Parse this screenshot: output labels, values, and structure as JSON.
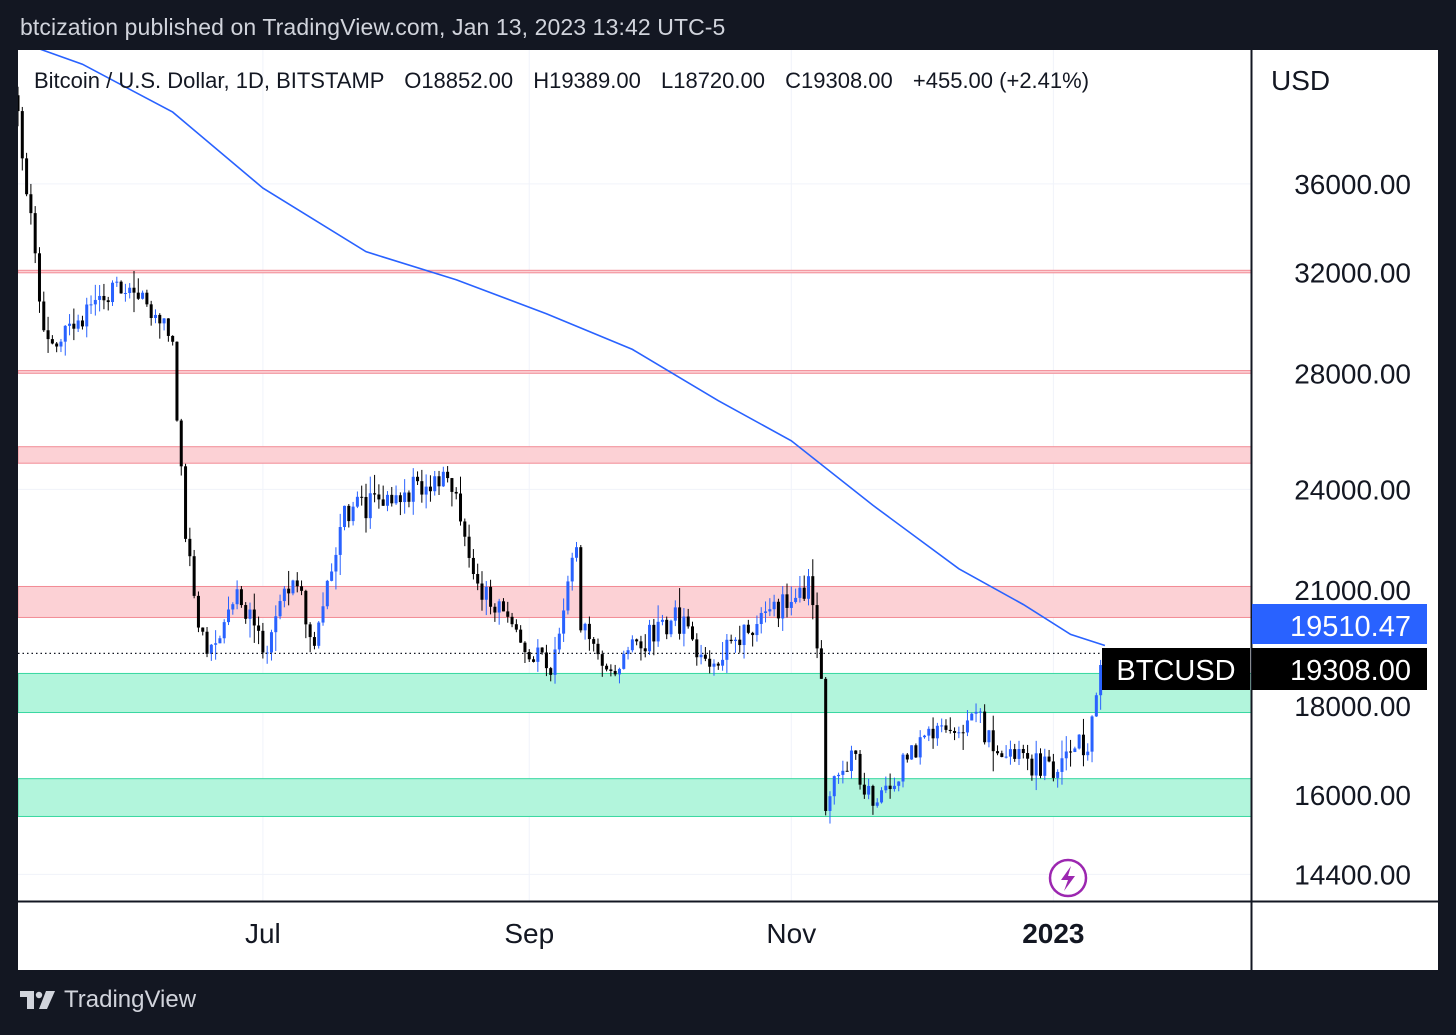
{
  "header": {
    "publisher_line": "btcization published on TradingView.com, Jan 13, 2023 13:42 UTC-5"
  },
  "legend": {
    "title": "Bitcoin / U.S. Dollar, 1D, BITSTAMP",
    "open": "O18852.00",
    "high": "H19389.00",
    "low": "L18720.00",
    "close": "C19308.00",
    "change": "+455.00 (+2.41%)"
  },
  "axis": {
    "currency": "USD",
    "price_ticks": [
      {
        "label": "36000.00",
        "value": 36000
      },
      {
        "label": "32000.00",
        "value": 32000
      },
      {
        "label": "28000.00",
        "value": 28000
      },
      {
        "label": "24000.00",
        "value": 24000
      },
      {
        "label": "21000.00",
        "value": 21000
      },
      {
        "label": "18000.00",
        "value": 18000
      },
      {
        "label": "16000.00",
        "value": 16000
      },
      {
        "label": "14400.00",
        "value": 14400
      }
    ],
    "time_ticks": [
      {
        "label": "Jul",
        "date": "2022-07-01",
        "bold": false
      },
      {
        "label": "Sep",
        "date": "2022-09-01",
        "bold": false
      },
      {
        "label": "Nov",
        "date": "2022-11-01",
        "bold": false
      },
      {
        "label": "2023",
        "date": "2023-01-01",
        "bold": true
      }
    ]
  },
  "badges": {
    "ma_value": "19510.47",
    "symbol": "BTCUSD",
    "last_price": "19308.00"
  },
  "footer": {
    "brand": "TradingView"
  },
  "colors": {
    "background": "#131722",
    "bull": "#2962ff",
    "bear": "#000000",
    "ma_line": "#2962ff",
    "resistance_fill": "#fcd1d5",
    "resistance_border": "#f28b95",
    "support_fill": "#b2f5dc",
    "support_border": "#37d8a0",
    "ma_badge": "#2962ff",
    "price_badge": "#000000",
    "lightning": "#9c27b0"
  },
  "chart_data": {
    "type": "candlestick",
    "symbol": "BTCUSD",
    "exchange": "BITSTAMP",
    "interval": "1D",
    "y_axis": {
      "scale": "log",
      "range": [
        13900,
        43000
      ]
    },
    "x_range": [
      "2022-05-05",
      "2023-02-16"
    ],
    "grid": true,
    "last_bar": {
      "date": "2023-01-13",
      "open": 18852.0,
      "high": 19389.0,
      "low": 18720.0,
      "close": 19308.0,
      "change": 455.0,
      "change_pct": 2.41
    },
    "moving_average": {
      "last_value": 19510.47,
      "points": [
        {
          "date": "2022-05-05",
          "value": 43500
        },
        {
          "date": "2022-05-20",
          "value": 42200
        },
        {
          "date": "2022-06-10",
          "value": 39600
        },
        {
          "date": "2022-07-01",
          "value": 35800
        },
        {
          "date": "2022-07-25",
          "value": 32900
        },
        {
          "date": "2022-08-15",
          "value": 31700
        },
        {
          "date": "2022-09-05",
          "value": 30300
        },
        {
          "date": "2022-09-25",
          "value": 28900
        },
        {
          "date": "2022-10-15",
          "value": 27000
        },
        {
          "date": "2022-11-01",
          "value": 25600
        },
        {
          "date": "2022-11-20",
          "value": 23500
        },
        {
          "date": "2022-12-10",
          "value": 21600
        },
        {
          "date": "2022-12-25",
          "value": 20600
        },
        {
          "date": "2023-01-05",
          "value": 19800
        },
        {
          "date": "2023-01-13",
          "value": 19510.47
        }
      ]
    },
    "zones": [
      {
        "kind": "resistance",
        "low": 32000,
        "high": 32100
      },
      {
        "kind": "resistance",
        "low": 28000,
        "high": 28100
      },
      {
        "kind": "resistance",
        "low": 24850,
        "high": 25400
      },
      {
        "kind": "resistance",
        "low": 20250,
        "high": 21100
      },
      {
        "kind": "support",
        "low": 17850,
        "high": 18800
      },
      {
        "kind": "support",
        "low": 15550,
        "high": 16350
      }
    ],
    "key_points": [
      {
        "date": "2022-05-05",
        "close": 39700
      },
      {
        "date": "2022-05-10",
        "close": 31000
      },
      {
        "date": "2022-05-12",
        "close": 29000
      },
      {
        "date": "2022-05-31",
        "close": 31800
      },
      {
        "date": "2022-06-10",
        "close": 29100
      },
      {
        "date": "2022-06-13",
        "close": 22400
      },
      {
        "date": "2022-06-18",
        "close": 19000
      },
      {
        "date": "2022-06-25",
        "close": 21200
      },
      {
        "date": "2022-07-01",
        "close": 19300
      },
      {
        "date": "2022-07-08",
        "close": 21600
      },
      {
        "date": "2022-07-13",
        "close": 19500
      },
      {
        "date": "2022-07-20",
        "close": 23200
      },
      {
        "date": "2022-07-30",
        "close": 23800
      },
      {
        "date": "2022-08-14",
        "close": 24300
      },
      {
        "date": "2022-08-19",
        "close": 21100
      },
      {
        "date": "2022-08-26",
        "close": 20300
      },
      {
        "date": "2022-09-06",
        "close": 18800
      },
      {
        "date": "2022-09-12",
        "close": 22400
      },
      {
        "date": "2022-09-13",
        "close": 20200
      },
      {
        "date": "2022-09-20",
        "close": 18900
      },
      {
        "date": "2022-10-05",
        "close": 20300
      },
      {
        "date": "2022-10-12",
        "close": 19100
      },
      {
        "date": "2022-10-25",
        "close": 20100
      },
      {
        "date": "2022-11-05",
        "close": 21200
      },
      {
        "date": "2022-11-08",
        "close": 18500
      },
      {
        "date": "2022-11-09",
        "close": 15900
      },
      {
        "date": "2022-11-15",
        "close": 16800
      },
      {
        "date": "2022-11-21",
        "close": 15800
      },
      {
        "date": "2022-11-30",
        "close": 17100
      },
      {
        "date": "2022-12-14",
        "close": 17800
      },
      {
        "date": "2022-12-20",
        "close": 16800
      },
      {
        "date": "2023-01-01",
        "close": 16600
      },
      {
        "date": "2023-01-09",
        "close": 17200
      },
      {
        "date": "2023-01-12",
        "close": 18852
      },
      {
        "date": "2023-01-13",
        "close": 19308
      }
    ]
  }
}
